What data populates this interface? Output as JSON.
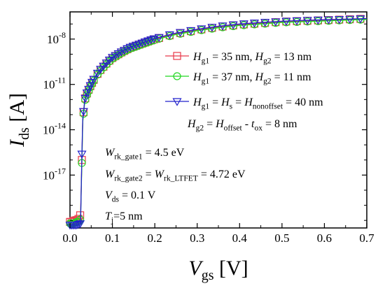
{
  "chart_data": {
    "type": "scatter",
    "title": "",
    "x_axis": {
      "label_main": "V",
      "label_sub": "gs",
      "label_unit": "[V]",
      "range": [
        0.0,
        0.7
      ],
      "ticks": [
        "0.0",
        "0.1",
        "0.2",
        "0.3",
        "0.4",
        "0.5",
        "0.6",
        "0.7"
      ]
    },
    "y_axis": {
      "scale": "log",
      "label_main": "I",
      "label_sub": "ds",
      "label_unit": "[A]",
      "range_log10": [
        -20.5,
        -6.2
      ],
      "ticks": [
        {
          "log10": -8,
          "base": "10",
          "exp": "-8"
        },
        {
          "log10": -11,
          "base": "10",
          "exp": "-11"
        },
        {
          "log10": -14,
          "base": "10",
          "exp": "-14"
        },
        {
          "log10": -17,
          "base": "10",
          "exp": "-17"
        }
      ]
    },
    "grid": false,
    "legend_position": "top-right",
    "series": [
      {
        "name_parts": [
          [
            "H",
            "i"
          ],
          [
            "g1",
            "sub"
          ],
          [
            " = 35 nm, ",
            "n"
          ],
          [
            "H",
            "i"
          ],
          [
            "g2",
            "sub"
          ],
          [
            " = 13 nm",
            "n"
          ]
        ],
        "color": "#e8394a",
        "marker": "square",
        "x": [
          0.0,
          0.005,
          0.01,
          0.015,
          0.02,
          0.025,
          0.028,
          0.03,
          0.035,
          0.04,
          0.05,
          0.06,
          0.07,
          0.08,
          0.09,
          0.1,
          0.12,
          0.14,
          0.16,
          0.2,
          0.25,
          0.3,
          0.35,
          0.4,
          0.45,
          0.5,
          0.55,
          0.6,
          0.65,
          0.7
        ],
        "log10_y": [
          -20.1,
          -20.1,
          -20.0,
          -20.0,
          -19.9,
          -19.6,
          -16.0,
          -13.4,
          -12.0,
          -11.6,
          -11.0,
          -10.5,
          -10.1,
          -9.8,
          -9.5,
          -9.25,
          -8.9,
          -8.6,
          -8.4,
          -8.0,
          -7.65,
          -7.4,
          -7.2,
          -7.05,
          -6.95,
          -6.85,
          -6.8,
          -6.75,
          -6.7,
          -6.65
        ]
      },
      {
        "name_parts": [
          [
            "H",
            "i"
          ],
          [
            "g1",
            "sub"
          ],
          [
            " = 37 nm, ",
            "n"
          ],
          [
            "H",
            "i"
          ],
          [
            "g2",
            "sub"
          ],
          [
            " = 11 nm",
            "n"
          ]
        ],
        "color": "#22d622",
        "marker": "circle",
        "x": [
          0.0,
          0.005,
          0.01,
          0.015,
          0.02,
          0.025,
          0.028,
          0.03,
          0.035,
          0.04,
          0.05,
          0.06,
          0.07,
          0.08,
          0.09,
          0.1,
          0.12,
          0.14,
          0.16,
          0.2,
          0.25,
          0.3,
          0.35,
          0.4,
          0.45,
          0.5,
          0.55,
          0.6,
          0.65,
          0.7
        ],
        "log10_y": [
          -20.2,
          -20.2,
          -20.2,
          -20.1,
          -20.1,
          -19.9,
          -16.2,
          -13.5,
          -12.1,
          -11.7,
          -11.05,
          -10.55,
          -10.15,
          -9.85,
          -9.55,
          -9.3,
          -8.95,
          -8.65,
          -8.45,
          -8.05,
          -7.7,
          -7.45,
          -7.25,
          -7.1,
          -7.0,
          -6.9,
          -6.85,
          -6.8,
          -6.75,
          -6.7
        ]
      },
      {
        "name_parts": [
          [
            "H",
            "i"
          ],
          [
            "g1",
            "sub"
          ],
          [
            " = ",
            "n"
          ],
          [
            "H",
            "i"
          ],
          [
            "s",
            "sub"
          ],
          [
            " = ",
            "n"
          ],
          [
            "H",
            "i"
          ],
          [
            "nonoffset",
            "sub"
          ],
          [
            " = 40 nm",
            "n"
          ]
        ],
        "color": "#2222cc",
        "marker": "triangle-down",
        "x": [
          0.0,
          0.005,
          0.01,
          0.015,
          0.02,
          0.025,
          0.028,
          0.03,
          0.035,
          0.04,
          0.05,
          0.06,
          0.07,
          0.08,
          0.09,
          0.1,
          0.12,
          0.14,
          0.16,
          0.2,
          0.25,
          0.3,
          0.35,
          0.4,
          0.45,
          0.5,
          0.55,
          0.6,
          0.65,
          0.7
        ],
        "log10_y": [
          -20.3,
          -20.3,
          -20.3,
          -20.3,
          -20.25,
          -20.2,
          -15.6,
          -13.3,
          -12.0,
          -11.55,
          -10.95,
          -10.45,
          -10.05,
          -9.75,
          -9.45,
          -9.2,
          -8.85,
          -8.55,
          -8.35,
          -7.95,
          -7.6,
          -7.35,
          -7.15,
          -7.0,
          -6.9,
          -6.82,
          -6.76,
          -6.72,
          -6.68,
          -6.64
        ]
      }
    ],
    "legend_extra_line": [
      [
        "H",
        "i"
      ],
      [
        "g2",
        "sub"
      ],
      [
        " = ",
        "n"
      ],
      [
        "H",
        "i"
      ],
      [
        "offset",
        "sub"
      ],
      [
        " - ",
        "n"
      ],
      [
        "t",
        "i"
      ],
      [
        "ox",
        "sub"
      ],
      [
        " = 8 nm",
        "n"
      ]
    ],
    "annotations": [
      [
        [
          "W",
          "i"
        ],
        [
          "rk_gate1",
          "sub"
        ],
        [
          " = 4.5 eV",
          "n"
        ]
      ],
      [
        [
          "W",
          "i"
        ],
        [
          "rk_gate2",
          "sub"
        ],
        [
          " = ",
          "n"
        ],
        [
          "W",
          "i"
        ],
        [
          "rk_LTFET",
          "sub"
        ],
        [
          " = 4.72 eV",
          "n"
        ]
      ],
      [
        [
          "V",
          "i"
        ],
        [
          "ds",
          "sub"
        ],
        [
          " = 0.1 V",
          "n"
        ]
      ],
      [
        [
          "T",
          "i"
        ],
        [
          "j",
          "sub"
        ],
        [
          "=5 nm",
          "n"
        ]
      ]
    ]
  }
}
